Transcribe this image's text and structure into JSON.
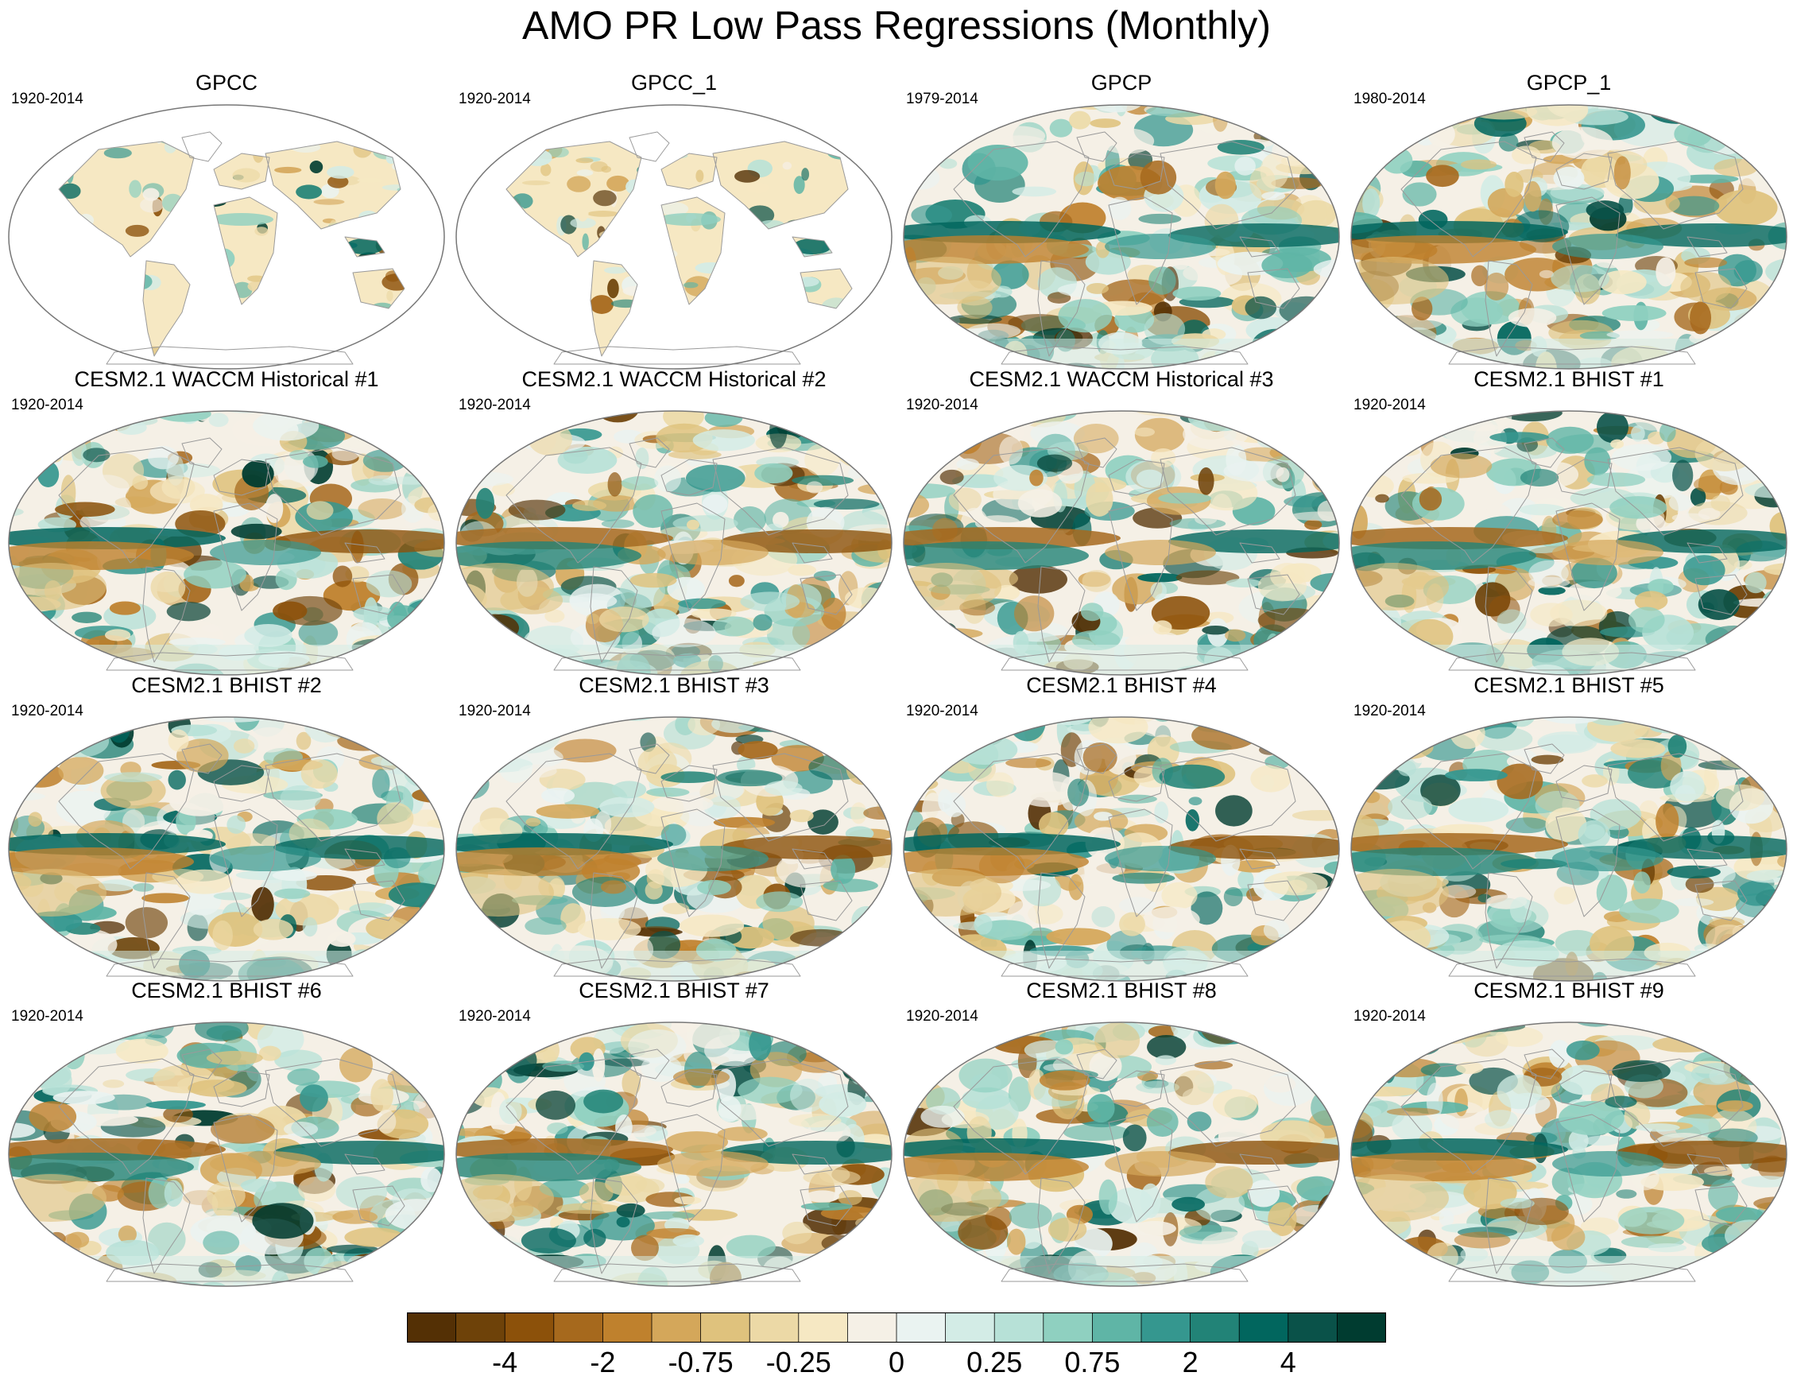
{
  "title": "AMO PR Low Pass Regressions (Monthly)",
  "colors": {
    "ocean_empty": "#ffffff",
    "coast": "#9a9a9a",
    "outline": "#777777"
  },
  "colorbar": {
    "colors": [
      "#543005",
      "#6e4209",
      "#8c510a",
      "#a6691d",
      "#bf812d",
      "#d4a75a",
      "#dfc27d",
      "#ecd9a6",
      "#f6e8c3",
      "#f5f0e6",
      "#eaf3f1",
      "#d3ece6",
      "#b7e1d7",
      "#8fd0c0",
      "#5fb5a6",
      "#35978f",
      "#228377",
      "#01665e",
      "#0a5249",
      "#003c30"
    ],
    "labels": [
      "-4",
      "-2",
      "-0.75",
      "-0.25",
      "0",
      "0.25",
      "0.75",
      "2",
      "4"
    ],
    "label_boundaries": [
      2,
      4,
      6,
      8,
      10,
      12,
      14,
      16,
      18
    ]
  },
  "panels": [
    {
      "title": "GPCC",
      "years": "1920-2014",
      "coverage": "land"
    },
    {
      "title": "GPCC_1",
      "years": "1920-2014",
      "coverage": "land"
    },
    {
      "title": "GPCP",
      "years": "1979-2014",
      "coverage": "global"
    },
    {
      "title": "GPCP_1",
      "years": "1980-2014",
      "coverage": "global"
    },
    {
      "title": "CESM2.1 WACCM Historical #1",
      "years": "1920-2014",
      "coverage": "global"
    },
    {
      "title": "CESM2.1 WACCM Historical #2",
      "years": "1920-2014",
      "coverage": "global"
    },
    {
      "title": "CESM2.1 WACCM Historical #3",
      "years": "1920-2014",
      "coverage": "global"
    },
    {
      "title": "CESM2.1 BHIST #1",
      "years": "1920-2014",
      "coverage": "global"
    },
    {
      "title": "CESM2.1 BHIST #2",
      "years": "1920-2014",
      "coverage": "global"
    },
    {
      "title": "CESM2.1 BHIST #3",
      "years": "1920-2014",
      "coverage": "global"
    },
    {
      "title": "CESM2.1 BHIST #4",
      "years": "1920-2014",
      "coverage": "global"
    },
    {
      "title": "CESM2.1 BHIST #5",
      "years": "1920-2014",
      "coverage": "global"
    },
    {
      "title": "CESM2.1 BHIST #6",
      "years": "1920-2014",
      "coverage": "global"
    },
    {
      "title": "CESM2.1 BHIST #7",
      "years": "1920-2014",
      "coverage": "global"
    },
    {
      "title": "CESM2.1 BHIST #8",
      "years": "1920-2014",
      "coverage": "global"
    },
    {
      "title": "CESM2.1 BHIST #9",
      "years": "1920-2014",
      "coverage": "global"
    }
  ]
}
